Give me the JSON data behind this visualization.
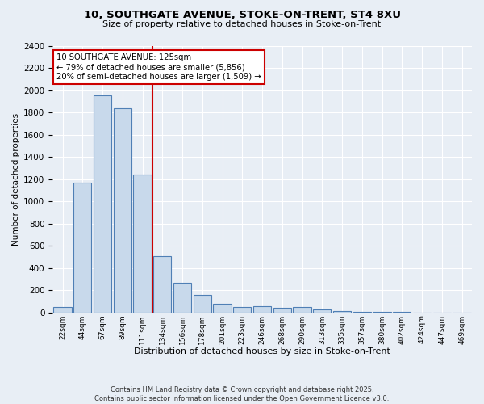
{
  "title_line1": "10, SOUTHGATE AVENUE, STOKE-ON-TRENT, ST4 8XU",
  "title_line2": "Size of property relative to detached houses in Stoke-on-Trent",
  "xlabel": "Distribution of detached houses by size in Stoke-on-Trent",
  "ylabel": "Number of detached properties",
  "categories": [
    "22sqm",
    "44sqm",
    "67sqm",
    "89sqm",
    "111sqm",
    "134sqm",
    "156sqm",
    "178sqm",
    "201sqm",
    "223sqm",
    "246sqm",
    "268sqm",
    "290sqm",
    "313sqm",
    "335sqm",
    "357sqm",
    "380sqm",
    "402sqm",
    "424sqm",
    "447sqm",
    "469sqm"
  ],
  "values": [
    50,
    1170,
    1950,
    1840,
    1240,
    510,
    270,
    155,
    80,
    50,
    55,
    40,
    45,
    30,
    10,
    5,
    5,
    2,
    1,
    1,
    1
  ],
  "bar_color": "#c8d9eb",
  "bar_edge_color": "#4f7fb5",
  "red_line_x": 4.5,
  "annotation_text": "10 SOUTHGATE AVENUE: 125sqm\n← 79% of detached houses are smaller (5,856)\n20% of semi-detached houses are larger (1,509) →",
  "annotation_box_color": "#ffffff",
  "annotation_box_edge": "#cc0000",
  "ylim": [
    0,
    2400
  ],
  "yticks": [
    0,
    200,
    400,
    600,
    800,
    1000,
    1200,
    1400,
    1600,
    1800,
    2000,
    2200,
    2400
  ],
  "background_color": "#e8eef5",
  "grid_color": "#ffffff",
  "footer_line1": "Contains HM Land Registry data © Crown copyright and database right 2025.",
  "footer_line2": "Contains public sector information licensed under the Open Government Licence v3.0."
}
